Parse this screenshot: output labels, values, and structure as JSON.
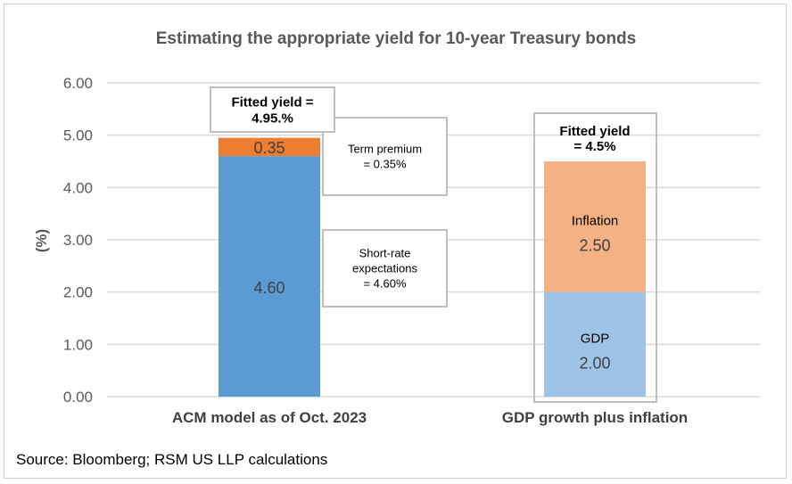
{
  "chart_data": {
    "type": "bar",
    "stacked": true,
    "title": "Estimating the appropriate yield for 10-year Treasury bonds",
    "ylabel": "(%)",
    "xlabel": "",
    "ylim": [
      0,
      6
    ],
    "yticks": [
      "0.00",
      "1.00",
      "2.00",
      "3.00",
      "4.00",
      "5.00",
      "6.00"
    ],
    "grid": true,
    "categories": [
      "ACM model as of Oct. 2023",
      "GDP growth plus inflation"
    ],
    "bars": [
      {
        "category": "ACM model as of Oct. 2023",
        "segments": [
          {
            "value": 4.6,
            "label": "4.60",
            "color": "#5b9bd5"
          },
          {
            "value": 0.35,
            "label": "0.35",
            "color": "#ed7d31"
          }
        ]
      },
      {
        "category": "GDP growth plus inflation",
        "segments": [
          {
            "value": 2.0,
            "label": "2.00",
            "name": "GDP",
            "color": "#9dc3e6"
          },
          {
            "value": 2.5,
            "label": "2.50",
            "name": "Inflation",
            "color": "#f4b183"
          }
        ]
      }
    ],
    "annotations": {
      "acm_fitted": [
        "Fitted yield =",
        "4.95.%"
      ],
      "term_premium": [
        "Term premium",
        "= 0.35%"
      ],
      "short_rate": [
        "Short-rate",
        "expectations",
        "= 4.60%"
      ],
      "gdp_fitted": [
        "Fitted yield",
        "= 4.5%"
      ]
    },
    "source": "Source: Bloomberg; RSM US LLP calculations"
  }
}
